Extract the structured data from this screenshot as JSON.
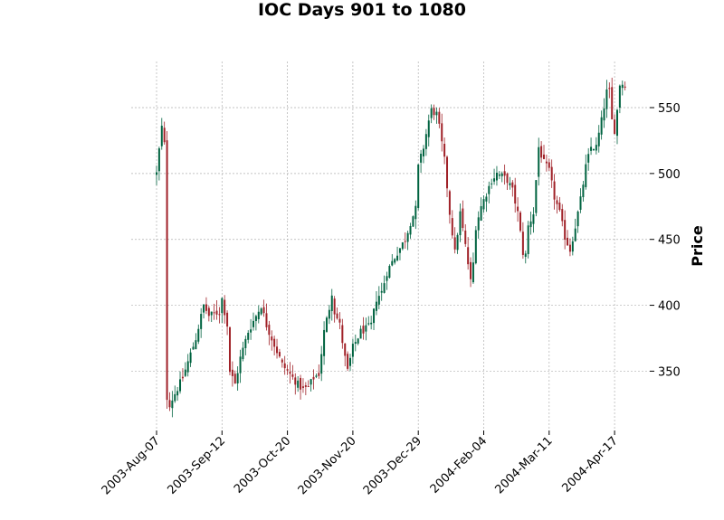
{
  "chart_data": {
    "type": "candlestick",
    "title": "IOC Days 901 to 1080",
    "xlabel": "",
    "ylabel": "Price",
    "ylim": [
      305,
      585
    ],
    "y_ticks": [
      350,
      400,
      450,
      500,
      550
    ],
    "x_tick_labels": [
      "2003-Aug-07",
      "2003-Sep-12",
      "2003-Oct-20",
      "2003-Nov-20",
      "2003-Dec-29",
      "2004-Feb-04",
      "2004-Mar-11",
      "2004-Apr-17"
    ],
    "x_tick_index": [
      0,
      25,
      50,
      75,
      100,
      125,
      150,
      175
    ],
    "num_candles": 180,
    "grid": true,
    "colors": {
      "up": "#006340",
      "down": "#a02128",
      "grid": "#b0b0b0"
    },
    "close_path": [
      [
        0,
        500
      ],
      [
        1,
        518
      ],
      [
        2,
        535
      ],
      [
        3,
        522
      ],
      [
        4,
        330
      ],
      [
        5,
        325
      ],
      [
        10,
        345
      ],
      [
        15,
        375
      ],
      [
        18,
        400
      ],
      [
        20,
        392
      ],
      [
        24,
        395
      ],
      [
        25,
        405
      ],
      [
        27,
        385
      ],
      [
        28,
        350
      ],
      [
        29,
        345
      ],
      [
        30,
        340
      ],
      [
        32,
        360
      ],
      [
        35,
        380
      ],
      [
        38,
        392
      ],
      [
        40,
        400
      ],
      [
        42,
        385
      ],
      [
        45,
        370
      ],
      [
        48,
        355
      ],
      [
        50,
        350
      ],
      [
        52,
        345
      ],
      [
        54,
        340
      ],
      [
        56,
        336
      ],
      [
        58,
        338
      ],
      [
        60,
        345
      ],
      [
        62,
        348
      ],
      [
        64,
        380
      ],
      [
        66,
        398
      ],
      [
        67,
        410
      ],
      [
        68,
        395
      ],
      [
        70,
        385
      ],
      [
        72,
        360
      ],
      [
        73,
        350
      ],
      [
        75,
        368
      ],
      [
        78,
        380
      ],
      [
        80,
        382
      ],
      [
        82,
        385
      ],
      [
        84,
        405
      ],
      [
        86,
        410
      ],
      [
        88,
        425
      ],
      [
        90,
        433
      ],
      [
        92,
        440
      ],
      [
        95,
        450
      ],
      [
        97,
        463
      ],
      [
        99,
        473
      ],
      [
        100,
        505
      ],
      [
        102,
        520
      ],
      [
        104,
        540
      ],
      [
        105,
        548
      ],
      [
        107,
        545
      ],
      [
        108,
        535
      ],
      [
        110,
        510
      ],
      [
        112,
        470
      ],
      [
        114,
        440
      ],
      [
        116,
        470
      ],
      [
        118,
        445
      ],
      [
        120,
        418
      ],
      [
        121,
        432
      ],
      [
        122,
        460
      ],
      [
        124,
        475
      ],
      [
        126,
        485
      ],
      [
        128,
        495
      ],
      [
        130,
        500
      ],
      [
        132,
        498
      ],
      [
        134,
        495
      ],
      [
        136,
        487
      ],
      [
        138,
        470
      ],
      [
        140,
        440
      ],
      [
        141,
        438
      ],
      [
        142,
        460
      ],
      [
        144,
        470
      ],
      [
        146,
        520
      ],
      [
        148,
        508
      ],
      [
        150,
        502
      ],
      [
        152,
        482
      ],
      [
        154,
        470
      ],
      [
        156,
        452
      ],
      [
        158,
        442
      ],
      [
        160,
        460
      ],
      [
        162,
        480
      ],
      [
        164,
        505
      ],
      [
        166,
        520
      ],
      [
        168,
        520
      ],
      [
        170,
        540
      ],
      [
        172,
        562
      ],
      [
        173,
        562
      ],
      [
        174,
        540
      ],
      [
        175,
        533
      ],
      [
        176,
        548
      ],
      [
        177,
        568
      ]
    ]
  }
}
